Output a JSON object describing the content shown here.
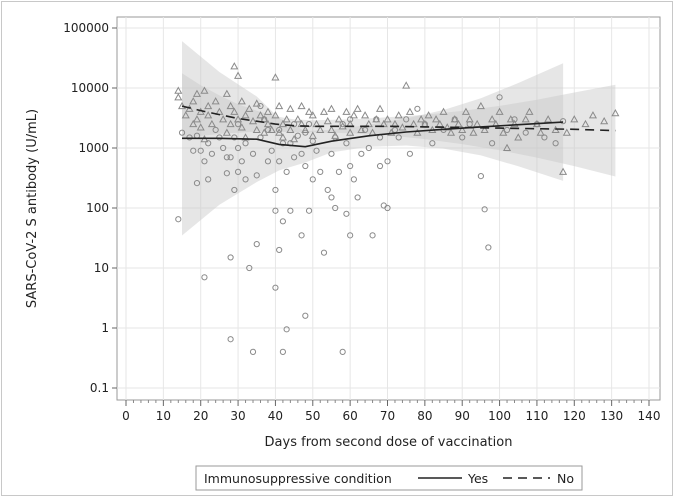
{
  "chart_data": {
    "type": "scatter",
    "xlabel": "Days from second dose of vaccination",
    "ylabel": "SARS-CoV-2 S antibody (U/mL)",
    "xlim": [
      0,
      140
    ],
    "ylim": [
      0.1,
      100000
    ],
    "yscale": "log",
    "grid": true,
    "x_ticks": [
      "0",
      "10",
      "20",
      "30",
      "40",
      "50",
      "60",
      "70",
      "80",
      "90",
      "100",
      "110",
      "120",
      "130",
      "140"
    ],
    "y_ticks": [
      "0.1",
      "1",
      "10",
      "100",
      "1000",
      "10000",
      "100000"
    ],
    "legend": {
      "title": "Immunosuppressive condition",
      "placement": "bottom",
      "entries": [
        {
          "label": "Yes",
          "line": "solid",
          "marker": "circle"
        },
        {
          "label": "No",
          "line": "dashed",
          "marker": "triangle"
        }
      ]
    },
    "series": [
      {
        "name": "Yes",
        "marker": "circle",
        "points": [
          [
            14,
            65
          ],
          [
            15,
            1800
          ],
          [
            17,
            1500
          ],
          [
            18,
            900
          ],
          [
            19,
            260
          ],
          [
            19,
            1600
          ],
          [
            20,
            900
          ],
          [
            21,
            7
          ],
          [
            21,
            600
          ],
          [
            22,
            1200
          ],
          [
            22,
            300
          ],
          [
            23,
            800
          ],
          [
            24,
            2000
          ],
          [
            25,
            1500
          ],
          [
            26,
            1000
          ],
          [
            27,
            700
          ],
          [
            27,
            380
          ],
          [
            28,
            700
          ],
          [
            28,
            0.65
          ],
          [
            28,
            15
          ],
          [
            29,
            200
          ],
          [
            29,
            1500
          ],
          [
            30,
            1000
          ],
          [
            30,
            400
          ],
          [
            30,
            2500
          ],
          [
            31,
            600
          ],
          [
            32,
            300
          ],
          [
            32,
            1200
          ],
          [
            33,
            10
          ],
          [
            34,
            800
          ],
          [
            34,
            0.4
          ],
          [
            35,
            25
          ],
          [
            35,
            350
          ],
          [
            36,
            1500
          ],
          [
            36,
            5000
          ],
          [
            37,
            3000
          ],
          [
            38,
            2000
          ],
          [
            38,
            600
          ],
          [
            39,
            900
          ],
          [
            40,
            90
          ],
          [
            40,
            200
          ],
          [
            40,
            4.7
          ],
          [
            41,
            600
          ],
          [
            41,
            20
          ],
          [
            41,
            2000
          ],
          [
            42,
            0.4
          ],
          [
            42,
            60
          ],
          [
            42,
            1200
          ],
          [
            43,
            0.95
          ],
          [
            43,
            400
          ],
          [
            44,
            90
          ],
          [
            44,
            1200
          ],
          [
            45,
            700
          ],
          [
            45,
            2500
          ],
          [
            46,
            1600
          ],
          [
            47,
            35
          ],
          [
            47,
            800
          ],
          [
            48,
            1.6
          ],
          [
            48,
            500
          ],
          [
            48,
            1800
          ],
          [
            49,
            90
          ],
          [
            49,
            2500
          ],
          [
            50,
            300
          ],
          [
            50,
            1300
          ],
          [
            51,
            900
          ],
          [
            52,
            400
          ],
          [
            53,
            18
          ],
          [
            54,
            200
          ],
          [
            55,
            150
          ],
          [
            55,
            800
          ],
          [
            56,
            1500
          ],
          [
            56,
            100
          ],
          [
            57,
            400
          ],
          [
            58,
            0.4
          ],
          [
            58,
            2500
          ],
          [
            59,
            80
          ],
          [
            59,
            1200
          ],
          [
            60,
            35
          ],
          [
            60,
            500
          ],
          [
            60,
            3000
          ],
          [
            61,
            300
          ],
          [
            62,
            150
          ],
          [
            63,
            800
          ],
          [
            64,
            2000
          ],
          [
            65,
            1000
          ],
          [
            66,
            35
          ],
          [
            67,
            3000
          ],
          [
            68,
            500
          ],
          [
            68,
            1500
          ],
          [
            69,
            110
          ],
          [
            70,
            100
          ],
          [
            70,
            600
          ],
          [
            72,
            2000
          ],
          [
            73,
            1500
          ],
          [
            75,
            3000
          ],
          [
            76,
            800
          ],
          [
            78,
            4500
          ],
          [
            80,
            2500
          ],
          [
            82,
            1200
          ],
          [
            85,
            2000
          ],
          [
            88,
            3000
          ],
          [
            90,
            1500
          ],
          [
            92,
            2500
          ],
          [
            95,
            340
          ],
          [
            96,
            95
          ],
          [
            97,
            22
          ],
          [
            98,
            1200
          ],
          [
            100,
            7000
          ],
          [
            102,
            2000
          ],
          [
            104,
            3000
          ],
          [
            107,
            1800
          ],
          [
            110,
            2500
          ],
          [
            112,
            1500
          ],
          [
            115,
            1200
          ],
          [
            117,
            2800
          ]
        ],
        "fit": [
          [
            15,
            1450
          ],
          [
            25,
            1450
          ],
          [
            35,
            1400
          ],
          [
            41,
            1150
          ],
          [
            48,
            1050
          ],
          [
            55,
            1300
          ],
          [
            65,
            1600
          ],
          [
            75,
            1850
          ],
          [
            85,
            2050
          ],
          [
            95,
            2250
          ],
          [
            105,
            2450
          ],
          [
            117,
            2700
          ]
        ]
      },
      {
        "name": "No",
        "marker": "triangle",
        "points": [
          [
            14,
            9000
          ],
          [
            14,
            7000
          ],
          [
            15,
            5000
          ],
          [
            16,
            3500
          ],
          [
            17,
            4500
          ],
          [
            18,
            6000
          ],
          [
            18,
            2500
          ],
          [
            19,
            3000
          ],
          [
            19,
            8000
          ],
          [
            20,
            2200
          ],
          [
            20,
            4000
          ],
          [
            21,
            9000
          ],
          [
            21,
            1400
          ],
          [
            22,
            3500
          ],
          [
            22,
            5000
          ],
          [
            23,
            2500
          ],
          [
            24,
            6000
          ],
          [
            25,
            4000
          ],
          [
            26,
            3000
          ],
          [
            27,
            8000
          ],
          [
            27,
            1800
          ],
          [
            28,
            5000
          ],
          [
            28,
            2500
          ],
          [
            29,
            23000
          ],
          [
            29,
            4000
          ],
          [
            30,
            16000
          ],
          [
            30,
            3000
          ],
          [
            31,
            2200
          ],
          [
            31,
            6000
          ],
          [
            32,
            3500
          ],
          [
            32,
            1500
          ],
          [
            33,
            4500
          ],
          [
            34,
            2800
          ],
          [
            35,
            5500
          ],
          [
            35,
            2000
          ],
          [
            36,
            3500
          ],
          [
            37,
            3000
          ],
          [
            37,
            1800
          ],
          [
            38,
            2500
          ],
          [
            38,
            4000
          ],
          [
            39,
            2000
          ],
          [
            40,
            15000
          ],
          [
            40,
            3500
          ],
          [
            41,
            1800
          ],
          [
            41,
            5000
          ],
          [
            42,
            2500
          ],
          [
            42,
            1500
          ],
          [
            43,
            3000
          ],
          [
            44,
            2000
          ],
          [
            44,
            4500
          ],
          [
            45,
            1400
          ],
          [
            46,
            3000
          ],
          [
            47,
            2500
          ],
          [
            47,
            5000
          ],
          [
            48,
            2000
          ],
          [
            49,
            4000
          ],
          [
            50,
            1600
          ],
          [
            50,
            3500
          ],
          [
            51,
            2500
          ],
          [
            52,
            2000
          ],
          [
            53,
            4000
          ],
          [
            54,
            2800
          ],
          [
            55,
            2000
          ],
          [
            55,
            4500
          ],
          [
            56,
            1600
          ],
          [
            57,
            3000
          ],
          [
            58,
            2300
          ],
          [
            59,
            4000
          ],
          [
            60,
            2500
          ],
          [
            60,
            1800
          ],
          [
            61,
            3500
          ],
          [
            62,
            4500
          ],
          [
            63,
            2000
          ],
          [
            64,
            3500
          ],
          [
            65,
            2500
          ],
          [
            66,
            1800
          ],
          [
            67,
            3000
          ],
          [
            68,
            4500
          ],
          [
            69,
            2500
          ],
          [
            70,
            3000
          ],
          [
            71,
            1800
          ],
          [
            72,
            2500
          ],
          [
            73,
            3500
          ],
          [
            74,
            2200
          ],
          [
            75,
            11000
          ],
          [
            76,
            4000
          ],
          [
            77,
            2500
          ],
          [
            78,
            1800
          ],
          [
            79,
            3000
          ],
          [
            80,
            2500
          ],
          [
            81,
            3500
          ],
          [
            82,
            2000
          ],
          [
            83,
            3000
          ],
          [
            84,
            2500
          ],
          [
            85,
            4000
          ],
          [
            86,
            2200
          ],
          [
            87,
            1800
          ],
          [
            88,
            3000
          ],
          [
            89,
            2500
          ],
          [
            90,
            2000
          ],
          [
            91,
            4000
          ],
          [
            92,
            3000
          ],
          [
            93,
            1800
          ],
          [
            94,
            2500
          ],
          [
            95,
            5000
          ],
          [
            96,
            2000
          ],
          [
            98,
            3000
          ],
          [
            99,
            2500
          ],
          [
            100,
            4000
          ],
          [
            101,
            1800
          ],
          [
            102,
            1000
          ],
          [
            103,
            3000
          ],
          [
            104,
            2500
          ],
          [
            105,
            1500
          ],
          [
            107,
            3000
          ],
          [
            108,
            4000
          ],
          [
            110,
            2500
          ],
          [
            111,
            1800
          ],
          [
            113,
            3000
          ],
          [
            115,
            2000
          ],
          [
            117,
            400
          ],
          [
            118,
            1800
          ],
          [
            120,
            3000
          ],
          [
            123,
            2500
          ],
          [
            125,
            3500
          ],
          [
            128,
            2800
          ],
          [
            131,
            3800
          ]
        ],
        "fit": [
          [
            15,
            5000
          ],
          [
            20,
            4200
          ],
          [
            25,
            3600
          ],
          [
            30,
            3100
          ],
          [
            35,
            2800
          ],
          [
            40,
            2500
          ],
          [
            45,
            2350
          ],
          [
            50,
            2300
          ],
          [
            60,
            2300
          ],
          [
            70,
            2300
          ],
          [
            80,
            2250
          ],
          [
            90,
            2200
          ],
          [
            100,
            2150
          ],
          [
            110,
            2100
          ],
          [
            120,
            2050
          ],
          [
            131,
            1950
          ]
        ]
      }
    ]
  }
}
